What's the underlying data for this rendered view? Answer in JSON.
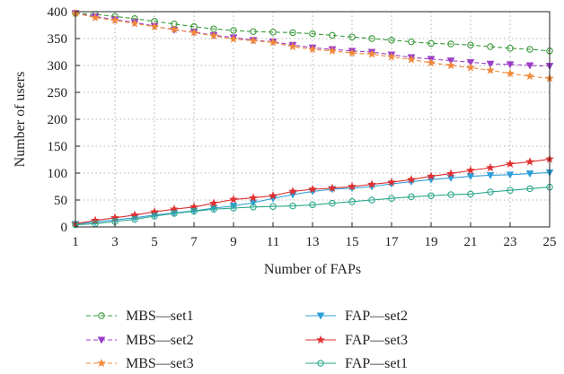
{
  "chart_data": {
    "type": "line",
    "xlabel": "Number of FAPs",
    "ylabel": "Number of users",
    "xlim": [
      1,
      25
    ],
    "ylim": [
      0,
      400
    ],
    "x_ticks": [
      1,
      3,
      5,
      7,
      9,
      11,
      13,
      15,
      17,
      19,
      21,
      23,
      25
    ],
    "y_ticks": [
      0,
      50,
      100,
      150,
      200,
      250,
      300,
      350,
      400
    ],
    "grid": true,
    "legend_position": "bottom",
    "x": [
      1,
      2,
      3,
      4,
      5,
      6,
      7,
      8,
      9,
      10,
      11,
      12,
      13,
      14,
      15,
      16,
      17,
      18,
      19,
      20,
      21,
      22,
      23,
      24,
      25
    ],
    "series": [
      {
        "name": "MBS—set1",
        "color": "#3a9a3a",
        "marker": "circle",
        "dash": "dashed",
        "values": [
          397,
          395,
          391,
          387,
          382,
          377,
          372,
          368,
          365,
          363,
          362,
          361,
          359,
          356,
          353,
          350,
          347,
          344,
          341,
          340,
          338,
          335,
          332,
          330,
          327
        ]
      },
      {
        "name": "MBS—set2",
        "color": "#9b3fc7",
        "marker": "triangle-down",
        "dash": "dashed",
        "values": [
          397,
          391,
          385,
          380,
          373,
          366,
          362,
          356,
          352,
          347,
          344,
          338,
          333,
          330,
          327,
          325,
          320,
          315,
          312,
          309,
          306,
          303,
          302,
          300,
          299
        ]
      },
      {
        "name": "MBS—set3",
        "color": "#f08a3c",
        "marker": "star",
        "dash": "dashed",
        "values": [
          397,
          389,
          384,
          378,
          372,
          367,
          361,
          355,
          349,
          346,
          343,
          335,
          330,
          327,
          323,
          321,
          316,
          311,
          305,
          300,
          296,
          291,
          285,
          280,
          276
        ]
      },
      {
        "name": "FAP—set2",
        "color": "#2f9fd8",
        "marker": "triangle-down",
        "dash": "solid",
        "values": [
          5,
          9,
          13,
          17,
          22,
          26,
          30,
          35,
          39,
          45,
          53,
          60,
          66,
          70,
          72,
          75,
          80,
          84,
          88,
          91,
          94,
          96,
          97,
          99,
          101
        ]
      },
      {
        "name": "FAP—set3",
        "color": "#e03030",
        "marker": "star",
        "dash": "solid",
        "values": [
          6,
          12,
          17,
          22,
          28,
          33,
          37,
          44,
          51,
          54,
          58,
          66,
          70,
          72,
          75,
          79,
          83,
          88,
          94,
          99,
          105,
          110,
          117,
          121,
          126
        ]
      },
      {
        "name": "FAP—set1",
        "color": "#2aa88a",
        "marker": "circle",
        "dash": "solid",
        "values": [
          4,
          6,
          10,
          14,
          20,
          25,
          29,
          33,
          35,
          37,
          38,
          39,
          41,
          44,
          47,
          50,
          53,
          56,
          58,
          60,
          61,
          65,
          68,
          71,
          74
        ]
      }
    ]
  }
}
